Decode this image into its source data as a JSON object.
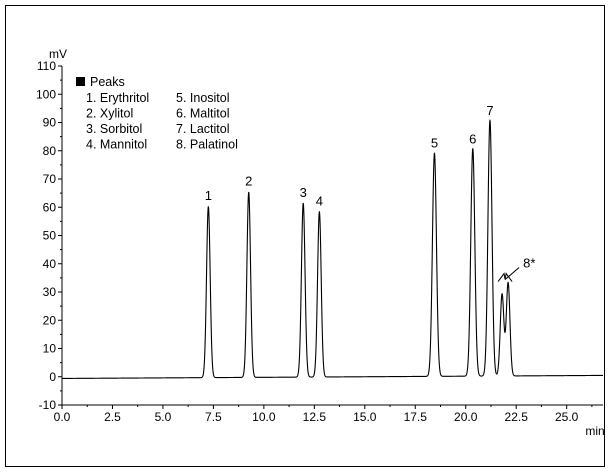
{
  "chart_data": {
    "type": "line",
    "xlabel": "min",
    "ylabel": "mV",
    "xlim": [
      0.0,
      26.8
    ],
    "ylim": [
      -10,
      110
    ],
    "x_ticks": [
      "0.0",
      "2.5",
      "5.0",
      "7.5",
      "10.0",
      "12.5",
      "15.0",
      "17.5",
      "20.0",
      "22.5",
      "25.0"
    ],
    "y_ticks": [
      "-10",
      "0",
      "10",
      "20",
      "30",
      "40",
      "50",
      "60",
      "70",
      "80",
      "90",
      "100",
      "110"
    ],
    "baseline": -0.6,
    "series_color": "#000000",
    "peaks": [
      {
        "label": "1",
        "time": 7.25,
        "height": 60.5,
        "width": 0.09
      },
      {
        "label": "2",
        "time": 9.25,
        "height": 65.5,
        "width": 0.09
      },
      {
        "label": "3",
        "time": 11.95,
        "height": 61.5,
        "width": 0.09
      },
      {
        "label": "4",
        "time": 12.75,
        "height": 58.5,
        "width": 0.09
      },
      {
        "label": "5",
        "time": 18.45,
        "height": 79.0,
        "width": 0.1
      },
      {
        "label": "6",
        "time": 20.35,
        "height": 80.5,
        "width": 0.1
      },
      {
        "label": "7",
        "time": 21.2,
        "height": 90.5,
        "width": 0.1
      },
      {
        "label": "",
        "time": 21.8,
        "height": 29.0,
        "width": 0.09
      },
      {
        "label": "",
        "time": 22.1,
        "height": 33.0,
        "width": 0.09
      }
    ],
    "bracket_label": "8*",
    "legend": {
      "title": "Peaks",
      "items": [
        "1. Erythritol",
        "2. Xylitol",
        "3. Sorbitol",
        "4. Mannitol",
        "5. Inositol",
        "6. Maltitol",
        "7. Lactitol",
        "8. Palatinol"
      ]
    }
  }
}
